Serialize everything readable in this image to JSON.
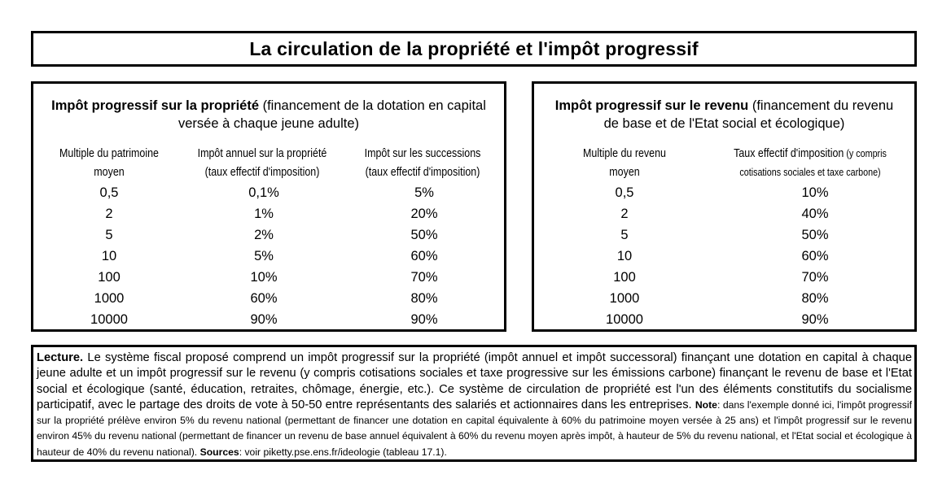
{
  "title": "La circulation de la propriété et l'impôt progressif",
  "left_panel": {
    "heading_bold": "Impôt progressif sur la propriété",
    "heading_rest": " (financement de la dotation en capital versée à chaque jeune adulte)",
    "col1_header_line1": "Multiple du patrimoine",
    "col1_header_line2": "moyen",
    "col2_header_line1": "Impôt annuel sur la propriété",
    "col2_header_line2": "(taux effectif d'imposition)",
    "col3_header_line1": "Impôt sur les successions",
    "col3_header_line2": "(taux effectif d'imposition)",
    "multiples": [
      "0,5",
      "2",
      "5",
      "10",
      "100",
      "1000",
      "10000"
    ],
    "annual_rates": [
      "0,1%",
      "1%",
      "2%",
      "5%",
      "10%",
      "60%",
      "90%"
    ],
    "succession_rates": [
      "5%",
      "20%",
      "50%",
      "60%",
      "70%",
      "80%",
      "90%"
    ]
  },
  "right_panel": {
    "heading_bold": "Impôt progressif sur le revenu",
    "heading_rest": " (financement du revenu de base et de l'Etat social et écologique)",
    "col1_header_line1": "Multiple du revenu",
    "col1_header_line2": "moyen",
    "col2_header_line1": "Taux effectif d'imposition",
    "col2_header_line1_small": " (y compris",
    "col2_header_line2": "cotisations sociales et taxe carbone)",
    "multiples": [
      "0,5",
      "2",
      "5",
      "10",
      "100",
      "1000",
      "10000"
    ],
    "rates": [
      "10%",
      "40%",
      "50%",
      "60%",
      "70%",
      "80%",
      "90%"
    ]
  },
  "lecture": {
    "lecture_label": "Lecture.",
    "lecture_text": " Le système fiscal proposé comprend un impôt progressif sur la propriété (impôt annuel et impôt successoral) finançant une dotation en capital à chaque jeune adulte et un impôt progressif sur le revenu (y compris cotisations sociales et taxe progressive sur les émissions carbone) finançant le revenu de base et l'Etat social et écologique (santé, éducation, retraites, chômage, énergie, etc.). Ce système de circulation de propriété est l'un des éléments constitutifs du socialisme participatif, avec le partage des droits de vote à 50-50 entre représentants des salariés et actionnaires dans les entreprises.",
    "note_label": "Note",
    "note_text": ": dans l'exemple donné ici, l'impôt progressif sur la propriété prélève environ 5% du revenu national (permettant de financer une dotation en capital équivalente à 60% du patrimoine moyen versée à 25 ans) et l'impôt progressif sur le revenu environ 45% du revenu national (permettant de financer un revenu de base annuel équivalent à 60% du revenu moyen après impôt, à hauteur de 5% du revenu national, et l'Etat social et écologique à hauteur de 40% du revenu national).",
    "sources_label": "Sources",
    "sources_text": ": voir piketty.pse.ens.fr/ideologie (tableau 17.1)."
  }
}
